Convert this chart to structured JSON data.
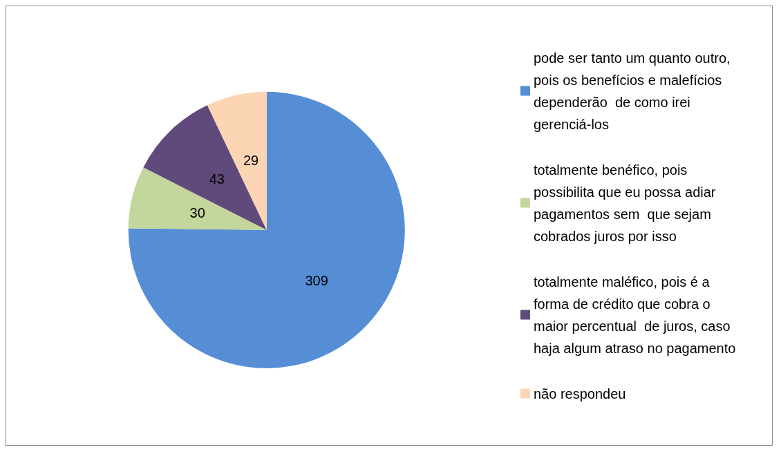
{
  "chart_data": {
    "type": "pie",
    "categories": [
      "pode ser tanto um quanto outro, pois os benefícios e malefícios dependerão  de como irei gerenciá-los",
      "totalmente benéfico, pois possibilita que eu possa adiar pagamentos sem  que sejam cobrados juros por isso",
      "totalmente maléfico, pois é a forma de crédito que cobra o maior percentual  de juros, caso haja algum atraso no pagamento",
      "não respondeu"
    ],
    "values": [
      309,
      30,
      43,
      29
    ],
    "colors": [
      "#558ed5",
      "#c3d69b",
      "#604a7b",
      "#fcd5b5"
    ],
    "data_labels": true,
    "legend": "right"
  }
}
